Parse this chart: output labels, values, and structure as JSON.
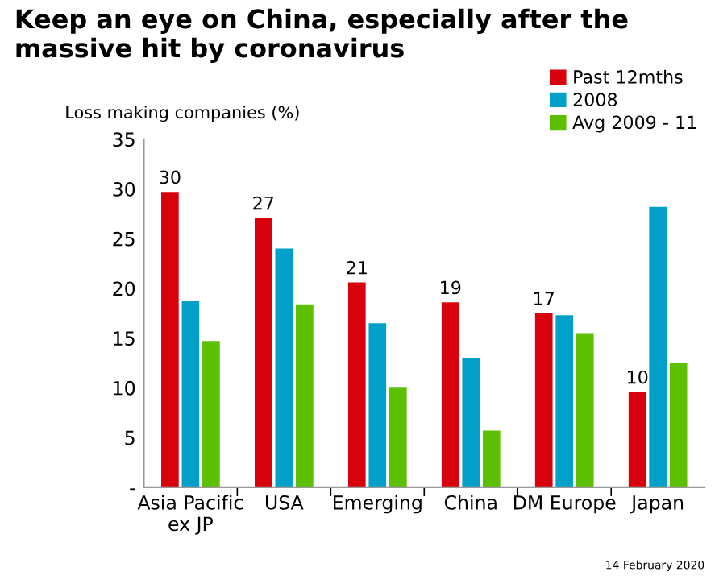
{
  "chart_data": {
    "type": "bar",
    "title": "Keep an eye on China, especially after the massive hit by coronavirus",
    "ylabel": "Loss making companies (%)",
    "categories": [
      "Asia Pacific\nex JP",
      "USA",
      "Emerging",
      "China",
      "DM Europe",
      "Japan"
    ],
    "series": [
      {
        "name": "Past 12mths",
        "color": "#d9000d",
        "values": [
          29.7,
          27.1,
          20.6,
          18.6,
          17.5,
          9.6
        ],
        "value_labels": [
          "30",
          "27",
          "21",
          "19",
          "17",
          "10"
        ]
      },
      {
        "name": "2008",
        "color": "#00a0c8",
        "values": [
          18.7,
          24.0,
          16.5,
          13.0,
          17.3,
          28.2
        ]
      },
      {
        "name": "Avg 2009 - 11",
        "color": "#5cbf00",
        "values": [
          14.7,
          18.4,
          10.0,
          5.7,
          15.5,
          12.5
        ]
      }
    ],
    "ylim": [
      0,
      35
    ],
    "yticks": [
      {
        "value": 0,
        "label": "-"
      },
      5,
      10,
      15,
      20,
      25,
      30,
      35
    ],
    "grid": false,
    "legend": "top right",
    "annotations": [
      "14 February 2020"
    ]
  }
}
